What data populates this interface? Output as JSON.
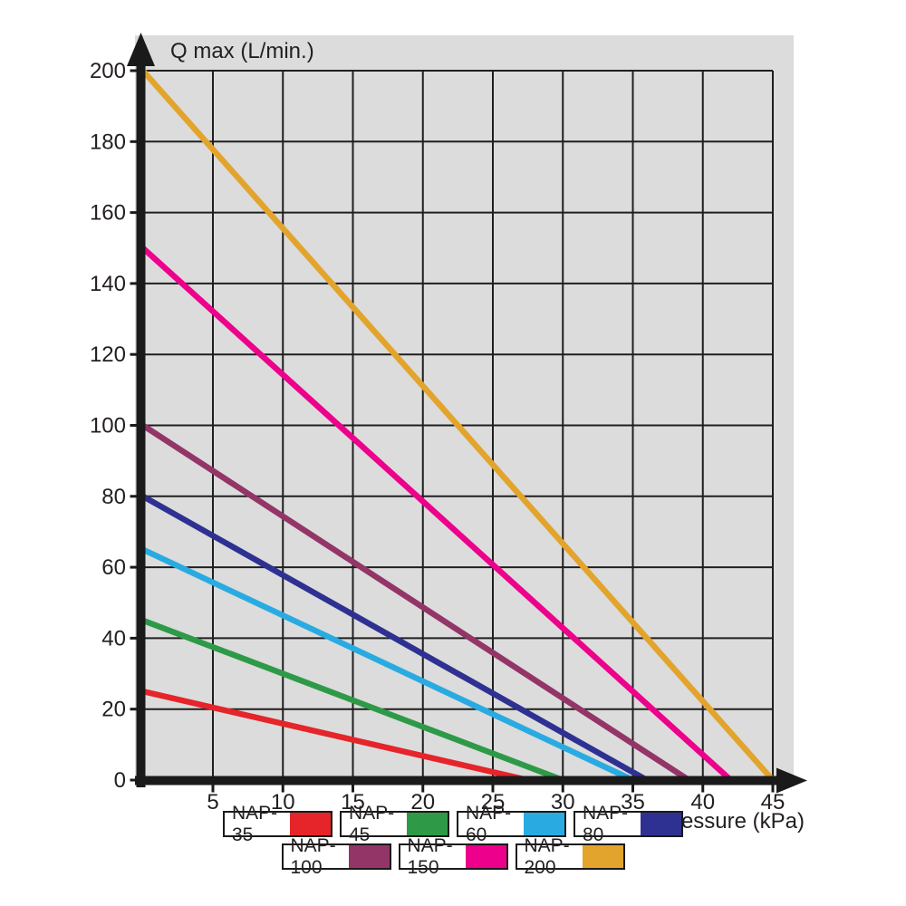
{
  "colors": {
    "plot_bg": "#dcdcdc",
    "grid": "#1f1f1f",
    "axis": "#1a1a1a",
    "text": "#231f20"
  },
  "chart_data": {
    "type": "line",
    "title": "",
    "xlabel": "Pressure (kPa)",
    "ylabel": "Q max (L/min.)",
    "xlim": [
      0,
      45
    ],
    "ylim": [
      0,
      200
    ],
    "x_ticks": [
      5,
      10,
      15,
      20,
      25,
      30,
      35,
      40,
      45
    ],
    "y_ticks": [
      0,
      20,
      40,
      60,
      80,
      100,
      120,
      140,
      160,
      180,
      200
    ],
    "grid": true,
    "legend_position": "bottom",
    "series": [
      {
        "name": "NAP-35",
        "color": "#e52529",
        "points": [
          [
            0,
            25
          ],
          [
            27.5,
            0
          ]
        ]
      },
      {
        "name": "NAP-45",
        "color": "#2e9a47",
        "points": [
          [
            0,
            45
          ],
          [
            30,
            0
          ]
        ]
      },
      {
        "name": "NAP-60",
        "color": "#29abe2",
        "points": [
          [
            0,
            65
          ],
          [
            35,
            0
          ]
        ]
      },
      {
        "name": "NAP-80",
        "color": "#2e3192",
        "points": [
          [
            0,
            80
          ],
          [
            36,
            0
          ]
        ]
      },
      {
        "name": "NAP-100",
        "color": "#943568",
        "points": [
          [
            0,
            100
          ],
          [
            39,
            0
          ]
        ]
      },
      {
        "name": "NAP-150",
        "color": "#ec008c",
        "points": [
          [
            0,
            150
          ],
          [
            42,
            0
          ]
        ]
      },
      {
        "name": "NAP-200",
        "color": "#e2a42c",
        "points": [
          [
            0,
            200
          ],
          [
            45,
            0
          ]
        ]
      }
    ],
    "legend_rows": [
      [
        "NAP-35",
        "NAP-45",
        "NAP-60",
        "NAP-80"
      ],
      [
        "NAP-100",
        "NAP-150",
        "NAP-200"
      ]
    ]
  }
}
